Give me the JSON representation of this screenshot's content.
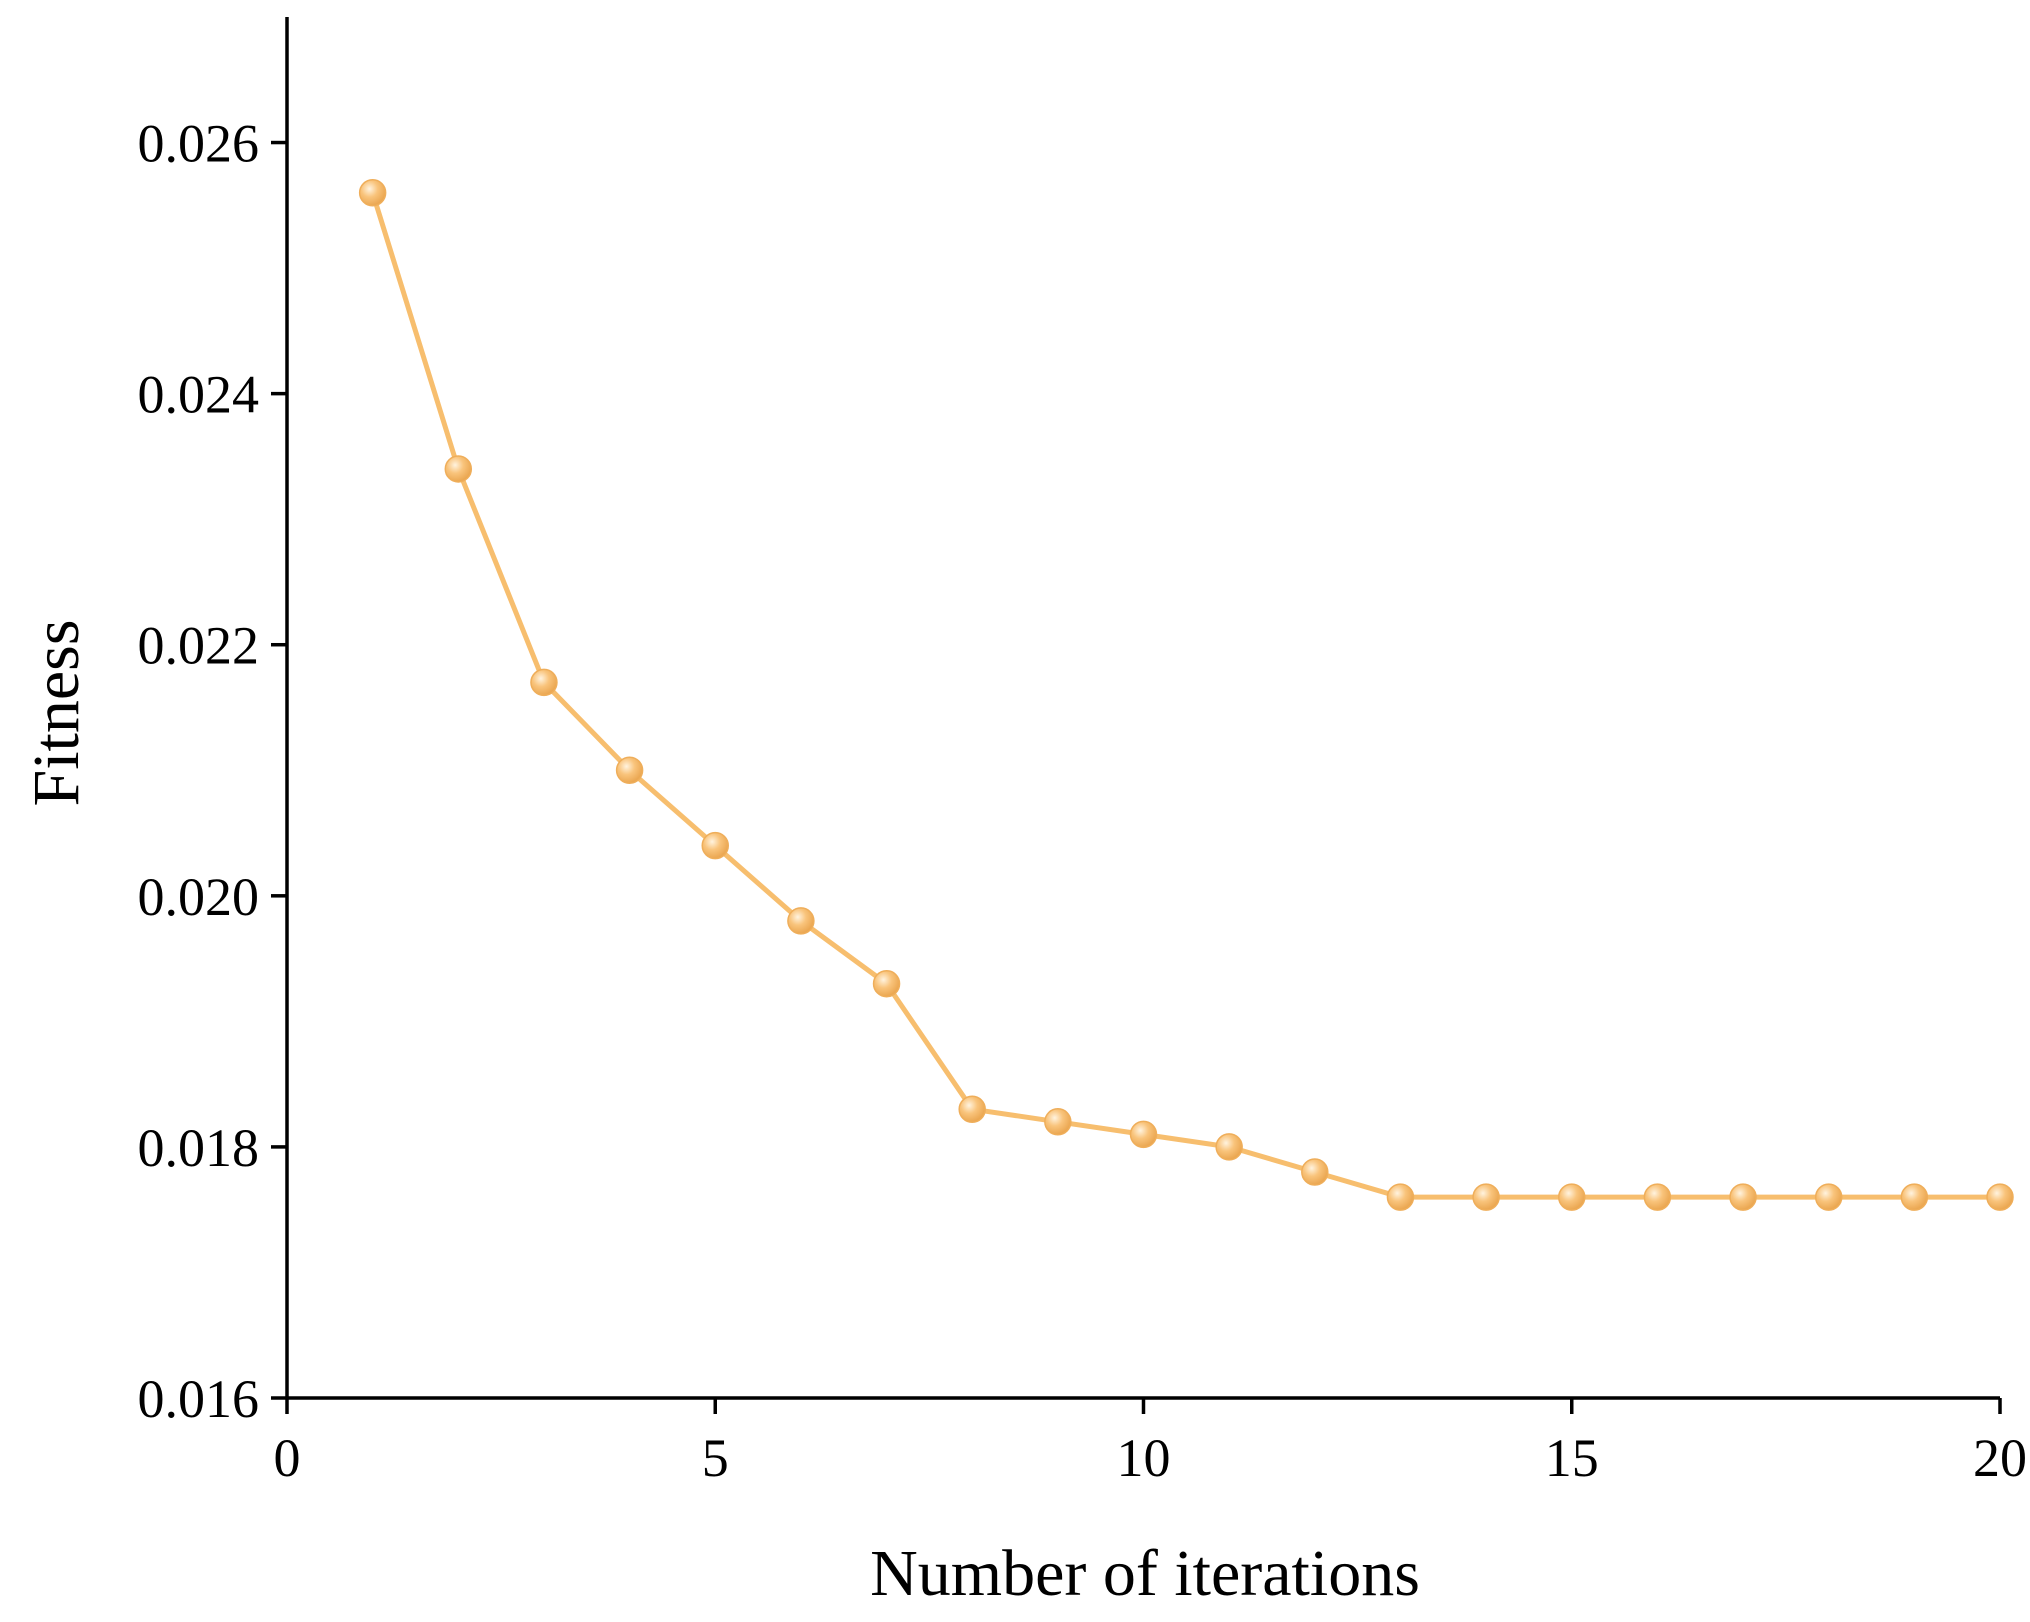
{
  "chart_data": {
    "type": "line",
    "title": "",
    "xlabel": "Number of iterations",
    "ylabel": "Fitness",
    "xlim": [
      0,
      20
    ],
    "ylim": [
      0.016,
      0.027
    ],
    "x_ticks": [
      0,
      5,
      10,
      15,
      20
    ],
    "x_tick_labels": [
      "0",
      "5",
      "10",
      "15",
      "20"
    ],
    "y_ticks": [
      0.016,
      0.018,
      0.02,
      0.022,
      0.024,
      0.026
    ],
    "y_tick_labels": [
      "0.016",
      "0.018",
      "0.020",
      "0.022",
      "0.024",
      "0.026"
    ],
    "grid": false,
    "legend": "none",
    "line_color": "#F7BE6E",
    "marker_color": "#F7BE6E",
    "series": [
      {
        "x": [
          1,
          2,
          3,
          4,
          5,
          6,
          7,
          8,
          9,
          10,
          11,
          12,
          13,
          14,
          15,
          16,
          17,
          18,
          19,
          20
        ],
        "values": [
          0.0256,
          0.0234,
          0.0217,
          0.021,
          0.0204,
          0.0198,
          0.0193,
          0.0183,
          0.0182,
          0.0181,
          0.018,
          0.0178,
          0.0176,
          0.0176,
          0.0176,
          0.0176,
          0.0176,
          0.0176,
          0.0176,
          0.0176
        ]
      }
    ]
  }
}
